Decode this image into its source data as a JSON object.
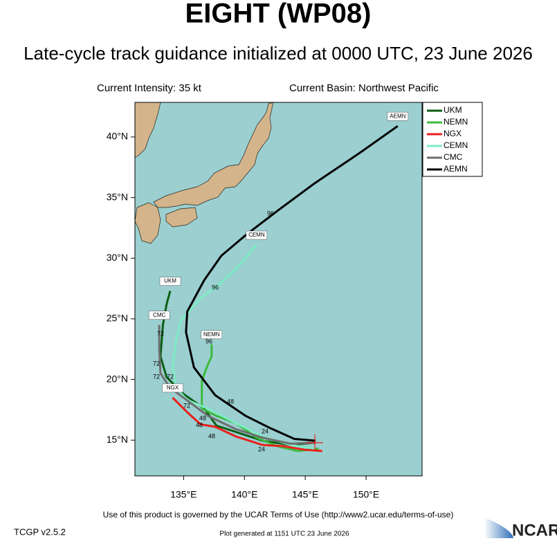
{
  "header": {
    "title": "EIGHT (WP08)",
    "subtitle": "Late-cycle track guidance initialized at 0000 UTC, 23 June 2026",
    "intensity": "Current Intensity: 35 kt",
    "basin": "Current Basin: Northwest Pacific"
  },
  "map": {
    "xlim": [
      131,
      154.6
    ],
    "ylim": [
      12.05,
      42.85
    ],
    "xticks": [
      {
        "value": 135,
        "label": "135°E"
      },
      {
        "value": 140,
        "label": "140°E"
      },
      {
        "value": 145,
        "label": "145°E"
      },
      {
        "value": 150,
        "label": "150°E"
      }
    ],
    "yticks": [
      {
        "value": 15,
        "label": "15°N"
      },
      {
        "value": 20,
        "label": "20°N"
      },
      {
        "value": 25,
        "label": "25°N"
      },
      {
        "value": 30,
        "label": "30°N"
      },
      {
        "value": 35,
        "label": "35°N"
      },
      {
        "value": 40,
        "label": "40°N"
      }
    ],
    "tracks": [
      {
        "name": "UKM",
        "color": "#0b5e12",
        "lon": [
          145.85,
          143.8,
          141.5,
          137.7,
          136.7,
          135.0,
          133.6,
          133.1,
          133.3,
          133.6,
          133.9
        ],
        "lat": [
          14.8,
          14.6,
          14.95,
          16.2,
          17.6,
          18.8,
          20.2,
          21.9,
          24.5,
          26.2,
          27.3
        ]
      },
      {
        "name": "NEMN",
        "color": "#3cb93c",
        "lon": [
          146.1,
          144.4,
          142.7,
          141.0,
          139.3,
          137.7,
          136.5,
          136.5,
          136.5,
          136.9,
          137.3,
          137.3
        ],
        "lat": [
          14.3,
          14.1,
          14.5,
          15.2,
          16.4,
          17.0,
          17.6,
          19.0,
          19.9,
          21.0,
          21.9,
          22.9
        ]
      },
      {
        "name": "NGX",
        "color": "#e8201c",
        "lon": [
          146.4,
          145.0,
          143.2,
          141.5,
          139.3,
          137.6,
          136.4,
          135.3,
          134.1
        ],
        "lat": [
          14.1,
          14.2,
          14.5,
          14.6,
          15.3,
          16.1,
          16.3,
          17.3,
          18.5
        ]
      },
      {
        "name": "CEMN",
        "color": "#7debc4",
        "lon": [
          145.8,
          143.8,
          141.5,
          139.3,
          137.0,
          135.3,
          134.4,
          134.1,
          134.4,
          134.8,
          136.4,
          138.0,
          139.3,
          141.0
        ],
        "lat": [
          14.3,
          14.6,
          15.3,
          16.4,
          17.6,
          18.3,
          19.3,
          21.0,
          23.3,
          24.9,
          26.7,
          27.9,
          29.1,
          31.1
        ]
      },
      {
        "name": "CMC",
        "color": "#6e6e6e",
        "lon": [
          145.8,
          143.8,
          141.5,
          139.3,
          137.0,
          135.0,
          133.9,
          133.1,
          133.0,
          133.0
        ],
        "lat": [
          14.8,
          14.7,
          15.2,
          15.9,
          17.0,
          18.5,
          19.3,
          20.5,
          22.5,
          24.5
        ]
      },
      {
        "name": "AEMN",
        "color": "#000000",
        "lon": [
          145.85,
          144.1,
          142.1,
          140.1,
          137.6,
          135.85,
          135.2,
          135.3,
          136.7,
          138.1,
          140.1,
          142.7,
          145.8,
          149.5,
          152.6
        ],
        "lat": [
          14.95,
          15.1,
          16.0,
          17.0,
          18.7,
          21.0,
          23.9,
          25.6,
          28.2,
          30.2,
          31.9,
          33.9,
          36.2,
          38.7,
          40.9
        ]
      }
    ],
    "hours": [
      "96",
      "96",
      "72",
      "96",
      "72",
      "72",
      "72",
      "72",
      "48",
      "48",
      "48",
      "48",
      "24",
      "24"
    ]
  },
  "footer": {
    "terms": "Use of this product is governed by the UCAR Terms of Use (http://www2.ucar.edu/terms-of-use)",
    "version": "TCGP v2.5.2",
    "generated": "Plot generated at 1151 UTC   23 June 2026",
    "logo": "NCAR"
  }
}
